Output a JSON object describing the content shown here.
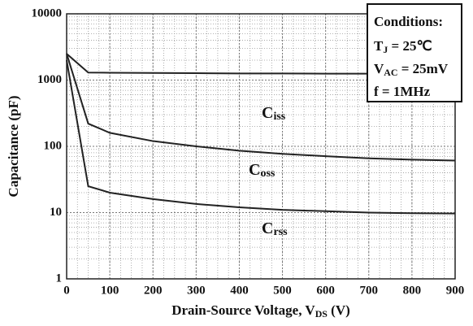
{
  "chart_data": {
    "type": "line",
    "xlabel": [
      "Drain-Source Voltage, V",
      "DS",
      " (V)"
    ],
    "ylabel": "Capacitance  (pF)",
    "x": [
      0,
      50,
      100,
      200,
      300,
      400,
      500,
      600,
      700,
      800,
      900
    ],
    "series": [
      {
        "label": [
          "C",
          "iss"
        ],
        "color": "#222222",
        "values": [
          2500,
          1300,
          1290,
          1280,
          1270,
          1260,
          1260,
          1250,
          1250,
          1250,
          1250
        ]
      },
      {
        "label": [
          "C",
          "oss"
        ],
        "color": "#222222",
        "values": [
          2500,
          220,
          160,
          120,
          100,
          86,
          77,
          71,
          66,
          63,
          61
        ]
      },
      {
        "label": [
          "C",
          "rss"
        ],
        "color": "#222222",
        "values": [
          2000,
          25,
          20,
          16,
          13.5,
          12,
          11,
          10.5,
          10,
          9.8,
          9.7
        ]
      }
    ],
    "xlim": [
      0,
      900
    ],
    "xticks": [
      0,
      100,
      200,
      300,
      400,
      500,
      600,
      700,
      800,
      900
    ],
    "ylim": [
      1,
      10000
    ],
    "yticks": [
      1,
      10,
      100,
      1000,
      10000
    ],
    "yscale": "log",
    "grid": true,
    "conditions": {
      "title": "Conditions:",
      "lines": [
        [
          "T",
          "J",
          " = 25℃"
        ],
        [
          "V",
          "AC",
          " = 25mV"
        ],
        [
          "f  =  1MHz"
        ]
      ]
    }
  }
}
